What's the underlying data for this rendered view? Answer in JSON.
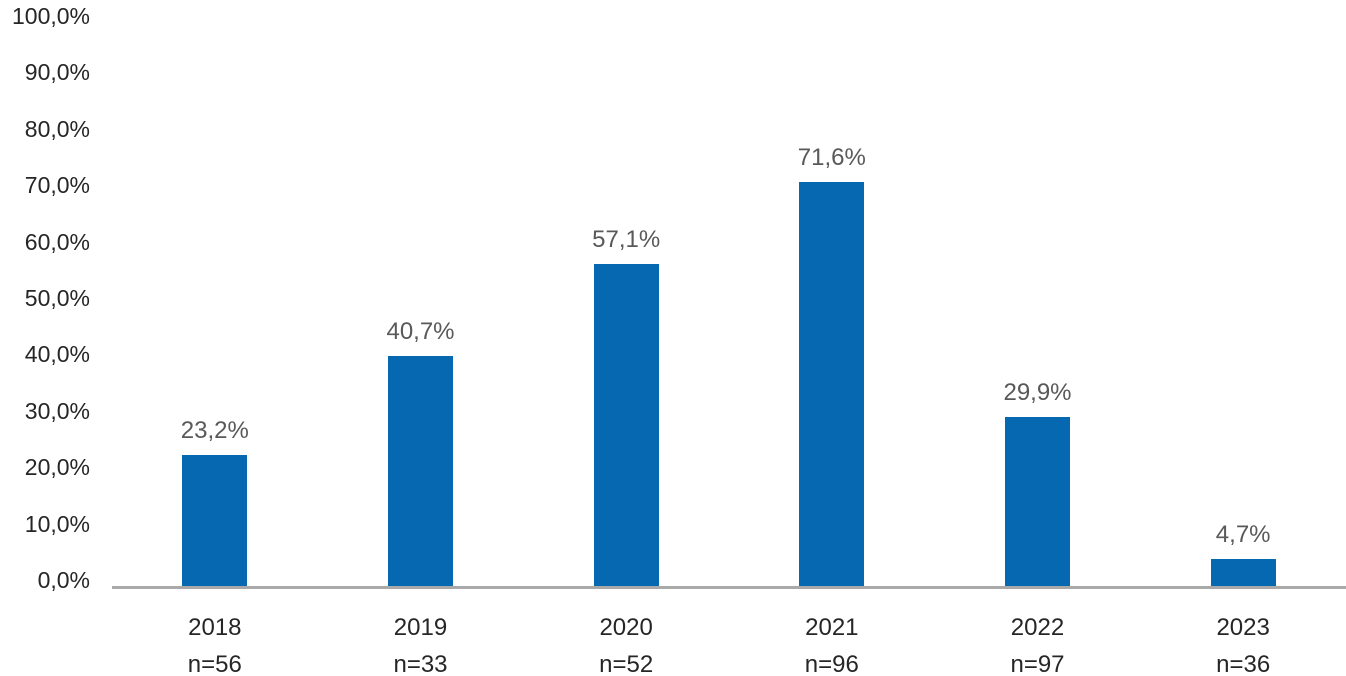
{
  "chart_data": {
    "type": "bar",
    "title": "",
    "xlabel": "",
    "ylabel": "",
    "categories": [
      "2018",
      "2019",
      "2020",
      "2021",
      "2022",
      "2023"
    ],
    "sample_sizes": [
      "n=56",
      "n=33",
      "n=52",
      "n=96",
      "n=97",
      "n=36"
    ],
    "values": [
      23.2,
      40.7,
      57.1,
      71.6,
      29.9,
      4.7
    ],
    "value_labels": [
      "23,2%",
      "40,7%",
      "57,1%",
      "71,6%",
      "29,9%",
      "4,7%"
    ],
    "y_tick_values": [
      100,
      90,
      80,
      70,
      60,
      50,
      40,
      30,
      20,
      10,
      0
    ],
    "y_tick_labels": [
      "100,0%",
      "90,0%",
      "80,0%",
      "70,0%",
      "60,0%",
      "50,0%",
      "40,0%",
      "30,0%",
      "20,0%",
      "10,0%",
      "0,0%"
    ],
    "ylim": [
      0,
      100
    ],
    "grid": false,
    "legend": false,
    "colors": {
      "bar": "#0668b1",
      "value_label": "#595959",
      "axis_text": "#262626",
      "axis_line": "#a9a9a9",
      "background": "#ffffff"
    }
  }
}
